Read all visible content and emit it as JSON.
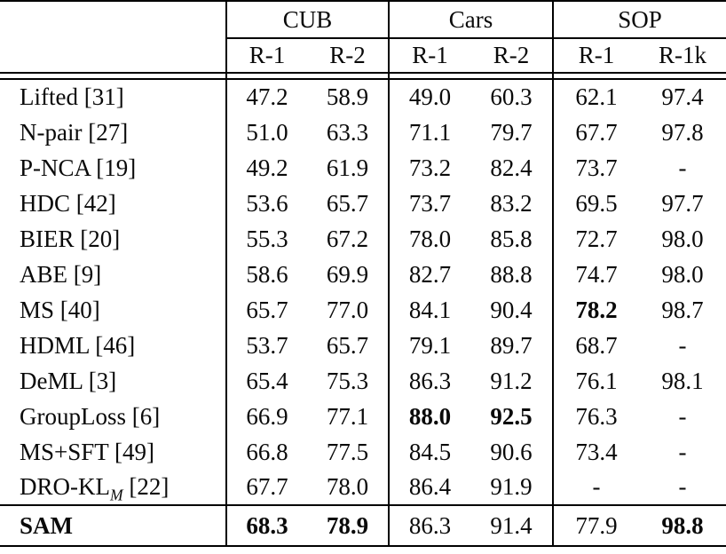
{
  "table": {
    "corner_label": "",
    "col_groups": [
      {
        "label": "CUB",
        "subcols": [
          "R-1",
          "R-2"
        ]
      },
      {
        "label": "Cars",
        "subcols": [
          "R-1",
          "R-2"
        ]
      },
      {
        "label": "SOP",
        "subcols": [
          "R-1",
          "R-1k"
        ]
      }
    ],
    "rows": [
      {
        "method": "Lifted [31]",
        "values": [
          "47.2",
          "58.9",
          "49.0",
          "60.3",
          "62.1",
          "97.4"
        ],
        "bold": [
          false,
          false,
          false,
          false,
          false,
          false
        ]
      },
      {
        "method": "N-pair [27]",
        "values": [
          "51.0",
          "63.3",
          "71.1",
          "79.7",
          "67.7",
          "97.8"
        ],
        "bold": [
          false,
          false,
          false,
          false,
          false,
          false
        ]
      },
      {
        "method": "P-NCA [19]",
        "values": [
          "49.2",
          "61.9",
          "73.2",
          "82.4",
          "73.7",
          "-"
        ],
        "bold": [
          false,
          false,
          false,
          false,
          false,
          false
        ]
      },
      {
        "method": "HDC [42]",
        "values": [
          "53.6",
          "65.7",
          "73.7",
          "83.2",
          "69.5",
          "97.7"
        ],
        "bold": [
          false,
          false,
          false,
          false,
          false,
          false
        ]
      },
      {
        "method": "BIER [20]",
        "values": [
          "55.3",
          "67.2",
          "78.0",
          "85.8",
          "72.7",
          "98.0"
        ],
        "bold": [
          false,
          false,
          false,
          false,
          false,
          false
        ]
      },
      {
        "method": "ABE [9]",
        "values": [
          "58.6",
          "69.9",
          "82.7",
          "88.8",
          "74.7",
          "98.0"
        ],
        "bold": [
          false,
          false,
          false,
          false,
          false,
          false
        ]
      },
      {
        "method": "MS [40]",
        "values": [
          "65.7",
          "77.0",
          "84.1",
          "90.4",
          "78.2",
          "98.7"
        ],
        "bold": [
          false,
          false,
          false,
          false,
          true,
          false
        ]
      },
      {
        "method": "HDML [46]",
        "values": [
          "53.7",
          "65.7",
          "79.1",
          "89.7",
          "68.7",
          "-"
        ],
        "bold": [
          false,
          false,
          false,
          false,
          false,
          false
        ]
      },
      {
        "method": "DeML [3]",
        "values": [
          "65.4",
          "75.3",
          "86.3",
          "91.2",
          "76.1",
          "98.1"
        ],
        "bold": [
          false,
          false,
          false,
          false,
          false,
          false
        ]
      },
      {
        "method": "GroupLoss [6]",
        "values": [
          "66.9",
          "77.1",
          "88.0",
          "92.5",
          "76.3",
          "-"
        ],
        "bold": [
          false,
          false,
          true,
          true,
          false,
          false
        ]
      },
      {
        "method": "MS+SFT [49]",
        "values": [
          "66.8",
          "77.5",
          "84.5",
          "90.6",
          "73.4",
          "-"
        ],
        "bold": [
          false,
          false,
          false,
          false,
          false,
          false
        ]
      },
      {
        "method": "DRO-KL [22]",
        "method_parts": [
          {
            "t": "DRO-KL"
          },
          {
            "t": "M",
            "sub": true
          },
          {
            "t": " [22]"
          }
        ],
        "values": [
          "67.7",
          "78.0",
          "86.4",
          "91.9",
          "-",
          "-"
        ],
        "bold": [
          false,
          false,
          false,
          false,
          false,
          false
        ]
      },
      {
        "method": "SAM",
        "method_bold": true,
        "is_final": true,
        "values": [
          "68.3",
          "78.9",
          "86.3",
          "91.4",
          "77.9",
          "98.8"
        ],
        "bold": [
          true,
          true,
          false,
          false,
          false,
          true
        ]
      }
    ]
  }
}
